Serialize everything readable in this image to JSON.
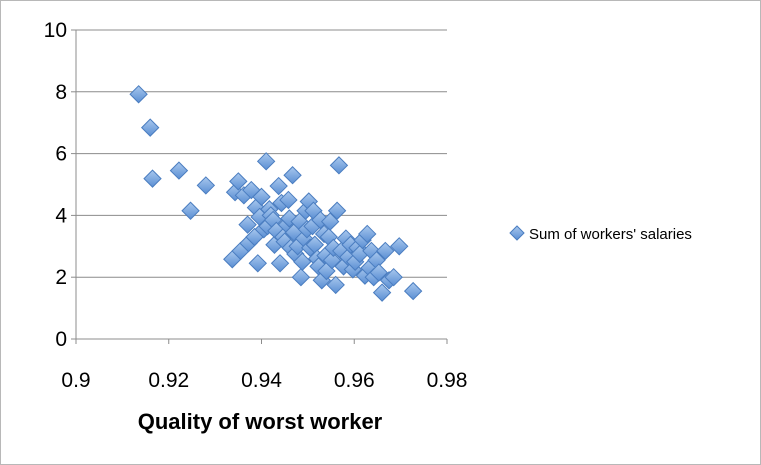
{
  "chart_data": {
    "type": "scatter",
    "title": "",
    "xlabel": "Quality of worst worker",
    "ylabel": "",
    "xlim": [
      0.9,
      0.98
    ],
    "ylim": [
      0,
      10
    ],
    "xticks": [
      "0.9",
      "0.92",
      "0.94",
      "0.96",
      "0.98"
    ],
    "yticks": [
      "0",
      "2",
      "4",
      "6",
      "8",
      "10"
    ],
    "grid": "horizontal",
    "legend_position": "right",
    "series": [
      {
        "name": "Sum of workers' salaries",
        "color": "#6E9ED8",
        "marker": "diamond",
        "x": [
          0.9135,
          0.916,
          0.9165,
          0.9222,
          0.9247,
          0.928,
          0.9337,
          0.9343,
          0.935,
          0.9355,
          0.9362,
          0.937,
          0.9372,
          0.9378,
          0.9385,
          0.9388,
          0.9392,
          0.9396,
          0.94,
          0.9405,
          0.941,
          0.9413,
          0.9417,
          0.942,
          0.9425,
          0.9428,
          0.9432,
          0.9437,
          0.944,
          0.9443,
          0.9447,
          0.945,
          0.9455,
          0.9458,
          0.946,
          0.9463,
          0.9467,
          0.947,
          0.9473,
          0.9478,
          0.9482,
          0.9485,
          0.9488,
          0.9492,
          0.9495,
          0.9498,
          0.9502,
          0.9505,
          0.951,
          0.9512,
          0.9515,
          0.952,
          0.9523,
          0.9527,
          0.953,
          0.9535,
          0.9538,
          0.954,
          0.9545,
          0.9548,
          0.9552,
          0.9555,
          0.956,
          0.9563,
          0.9567,
          0.9572,
          0.9577,
          0.9582,
          0.9587,
          0.9592,
          0.9597,
          0.9602,
          0.9607,
          0.9612,
          0.9618,
          0.9623,
          0.9628,
          0.9633,
          0.9637,
          0.9642,
          0.9648,
          0.9653,
          0.966,
          0.9667,
          0.9675,
          0.9685,
          0.9697,
          0.9727
        ],
        "y": [
          7.92,
          6.84,
          5.19,
          5.45,
          4.15,
          4.97,
          2.58,
          4.75,
          5.1,
          2.85,
          4.65,
          3.7,
          3.1,
          4.82,
          3.3,
          4.25,
          2.45,
          3.95,
          4.6,
          3.55,
          5.75,
          3.65,
          4.2,
          4.0,
          3.85,
          3.05,
          3.5,
          4.95,
          2.45,
          4.4,
          3.3,
          3.15,
          3.7,
          4.5,
          3.9,
          2.95,
          5.3,
          3.45,
          2.75,
          3.0,
          3.8,
          2.0,
          2.5,
          3.25,
          4.15,
          3.55,
          4.45,
          2.95,
          3.65,
          4.15,
          3.05,
          2.6,
          2.35,
          3.85,
          1.9,
          3.4,
          2.7,
          2.2,
          3.3,
          3.8,
          2.55,
          2.95,
          1.75,
          4.15,
          5.62,
          2.85,
          2.35,
          3.25,
          2.65,
          3.05,
          2.25,
          2.5,
          2.95,
          2.75,
          3.2,
          2.05,
          3.4,
          2.3,
          2.85,
          2.0,
          2.55,
          2.15,
          1.5,
          2.85,
          1.9,
          2.0,
          3.0,
          1.55
        ]
      }
    ]
  }
}
